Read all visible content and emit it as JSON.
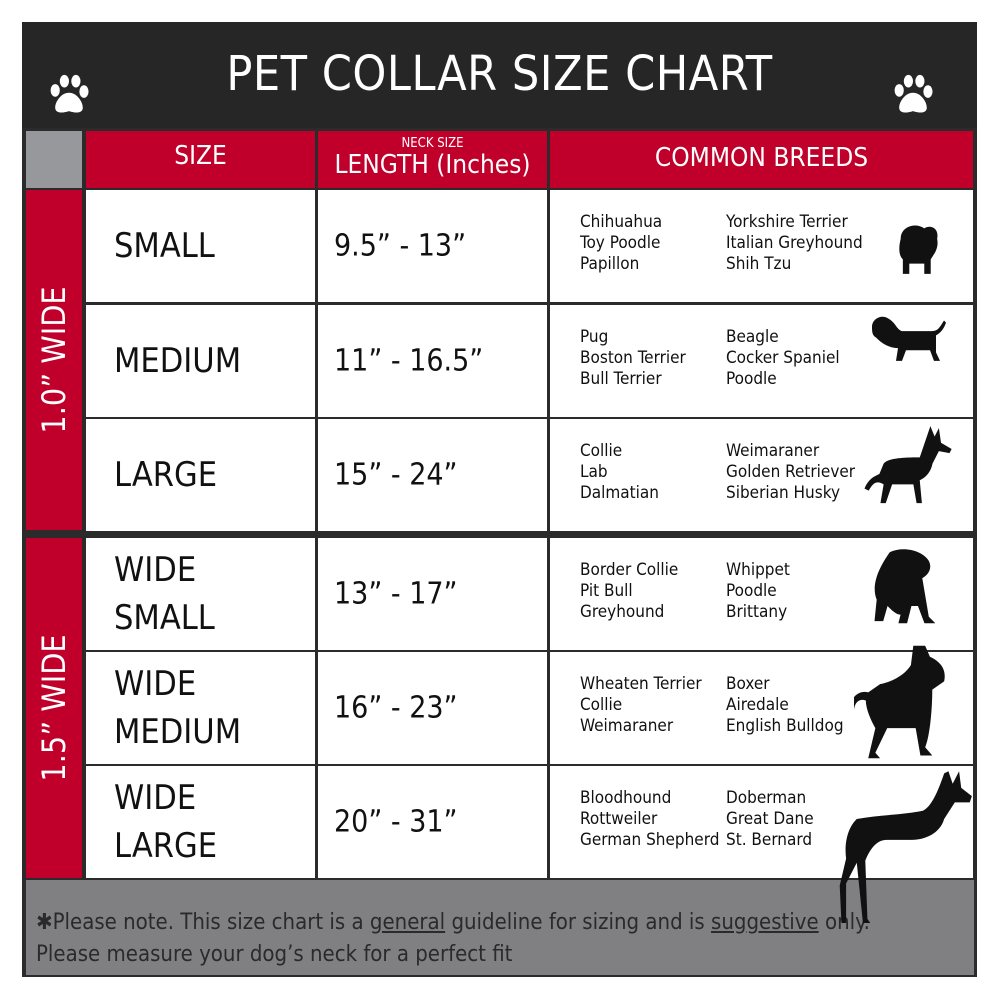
{
  "title": "PET COLLAR SIZE CHART",
  "icons": {
    "title_left": "paw-print-icon",
    "title_right": "paw-print-icon"
  },
  "colors": {
    "header_red": "#c0002b",
    "title_bar": "#262626",
    "footer_gray": "#808083"
  },
  "headers": {
    "size": "SIZE",
    "length_small": "NECK SIZE",
    "length": "LENGTH (Inches)",
    "breeds": "COMMON BREEDS"
  },
  "groups": [
    {
      "label": "1.0” WIDE",
      "rows": [
        {
          "size": "SMALL",
          "length": "9.5” - 13”",
          "breeds_a": [
            "Chihuahua",
            "Toy Poodle",
            "Papillon"
          ],
          "breeds_b": [
            "Yorkshire Terrier",
            "Italian Greyhound",
            "Shih Tzu"
          ],
          "icon": "small-dog-silhouette-icon"
        },
        {
          "size": "MEDIUM",
          "length": "11” - 16.5”",
          "breeds_a": [
            "Pug",
            "Boston Terrier",
            "Bull Terrier"
          ],
          "breeds_b": [
            "Beagle",
            "Cocker Spaniel",
            "Poodle"
          ],
          "icon": "medium-dog-silhouette-icon"
        },
        {
          "size": "LARGE",
          "length": "15” - 24”",
          "breeds_a": [
            "Collie",
            "Lab",
            "Dalmatian"
          ],
          "breeds_b": [
            "Weimaraner",
            "Golden Retriever",
            "Siberian Husky"
          ],
          "icon": "large-dog-silhouette-icon"
        }
      ]
    },
    {
      "label": "1.5” WIDE",
      "rows": [
        {
          "size": "WIDE SMALL",
          "length": "13” - 17”",
          "breeds_a": [
            "Border Collie",
            "Pit Bull",
            "Greyhound"
          ],
          "breeds_b": [
            "Whippet",
            "Poodle",
            "Brittany"
          ],
          "icon": "bulldog-silhouette-icon"
        },
        {
          "size": "WIDE MEDIUM",
          "length": "16” - 23”",
          "breeds_a": [
            "Wheaten Terrier",
            "Collie",
            "Weimaraner"
          ],
          "breeds_b": [
            "Boxer",
            "Airedale",
            "English Bulldog"
          ],
          "icon": "pitbull-silhouette-icon"
        },
        {
          "size": "WIDE LARGE",
          "length": "20” - 31”",
          "breeds_a": [
            "Bloodhound",
            "Rottweiler",
            "German Shepherd"
          ],
          "breeds_b": [
            "Doberman",
            "Great Dane",
            "St. Bernard"
          ],
          "icon": "doberman-silhouette-icon"
        }
      ]
    }
  ],
  "footer": {
    "part1": "✱Please note. This size chart is a ",
    "u1": "general",
    "part2": " guideline for sizing and is ",
    "u2": "suggestive",
    "part3": " only.",
    "line2": "Please measure your dog’s neck for a perfect fit"
  }
}
